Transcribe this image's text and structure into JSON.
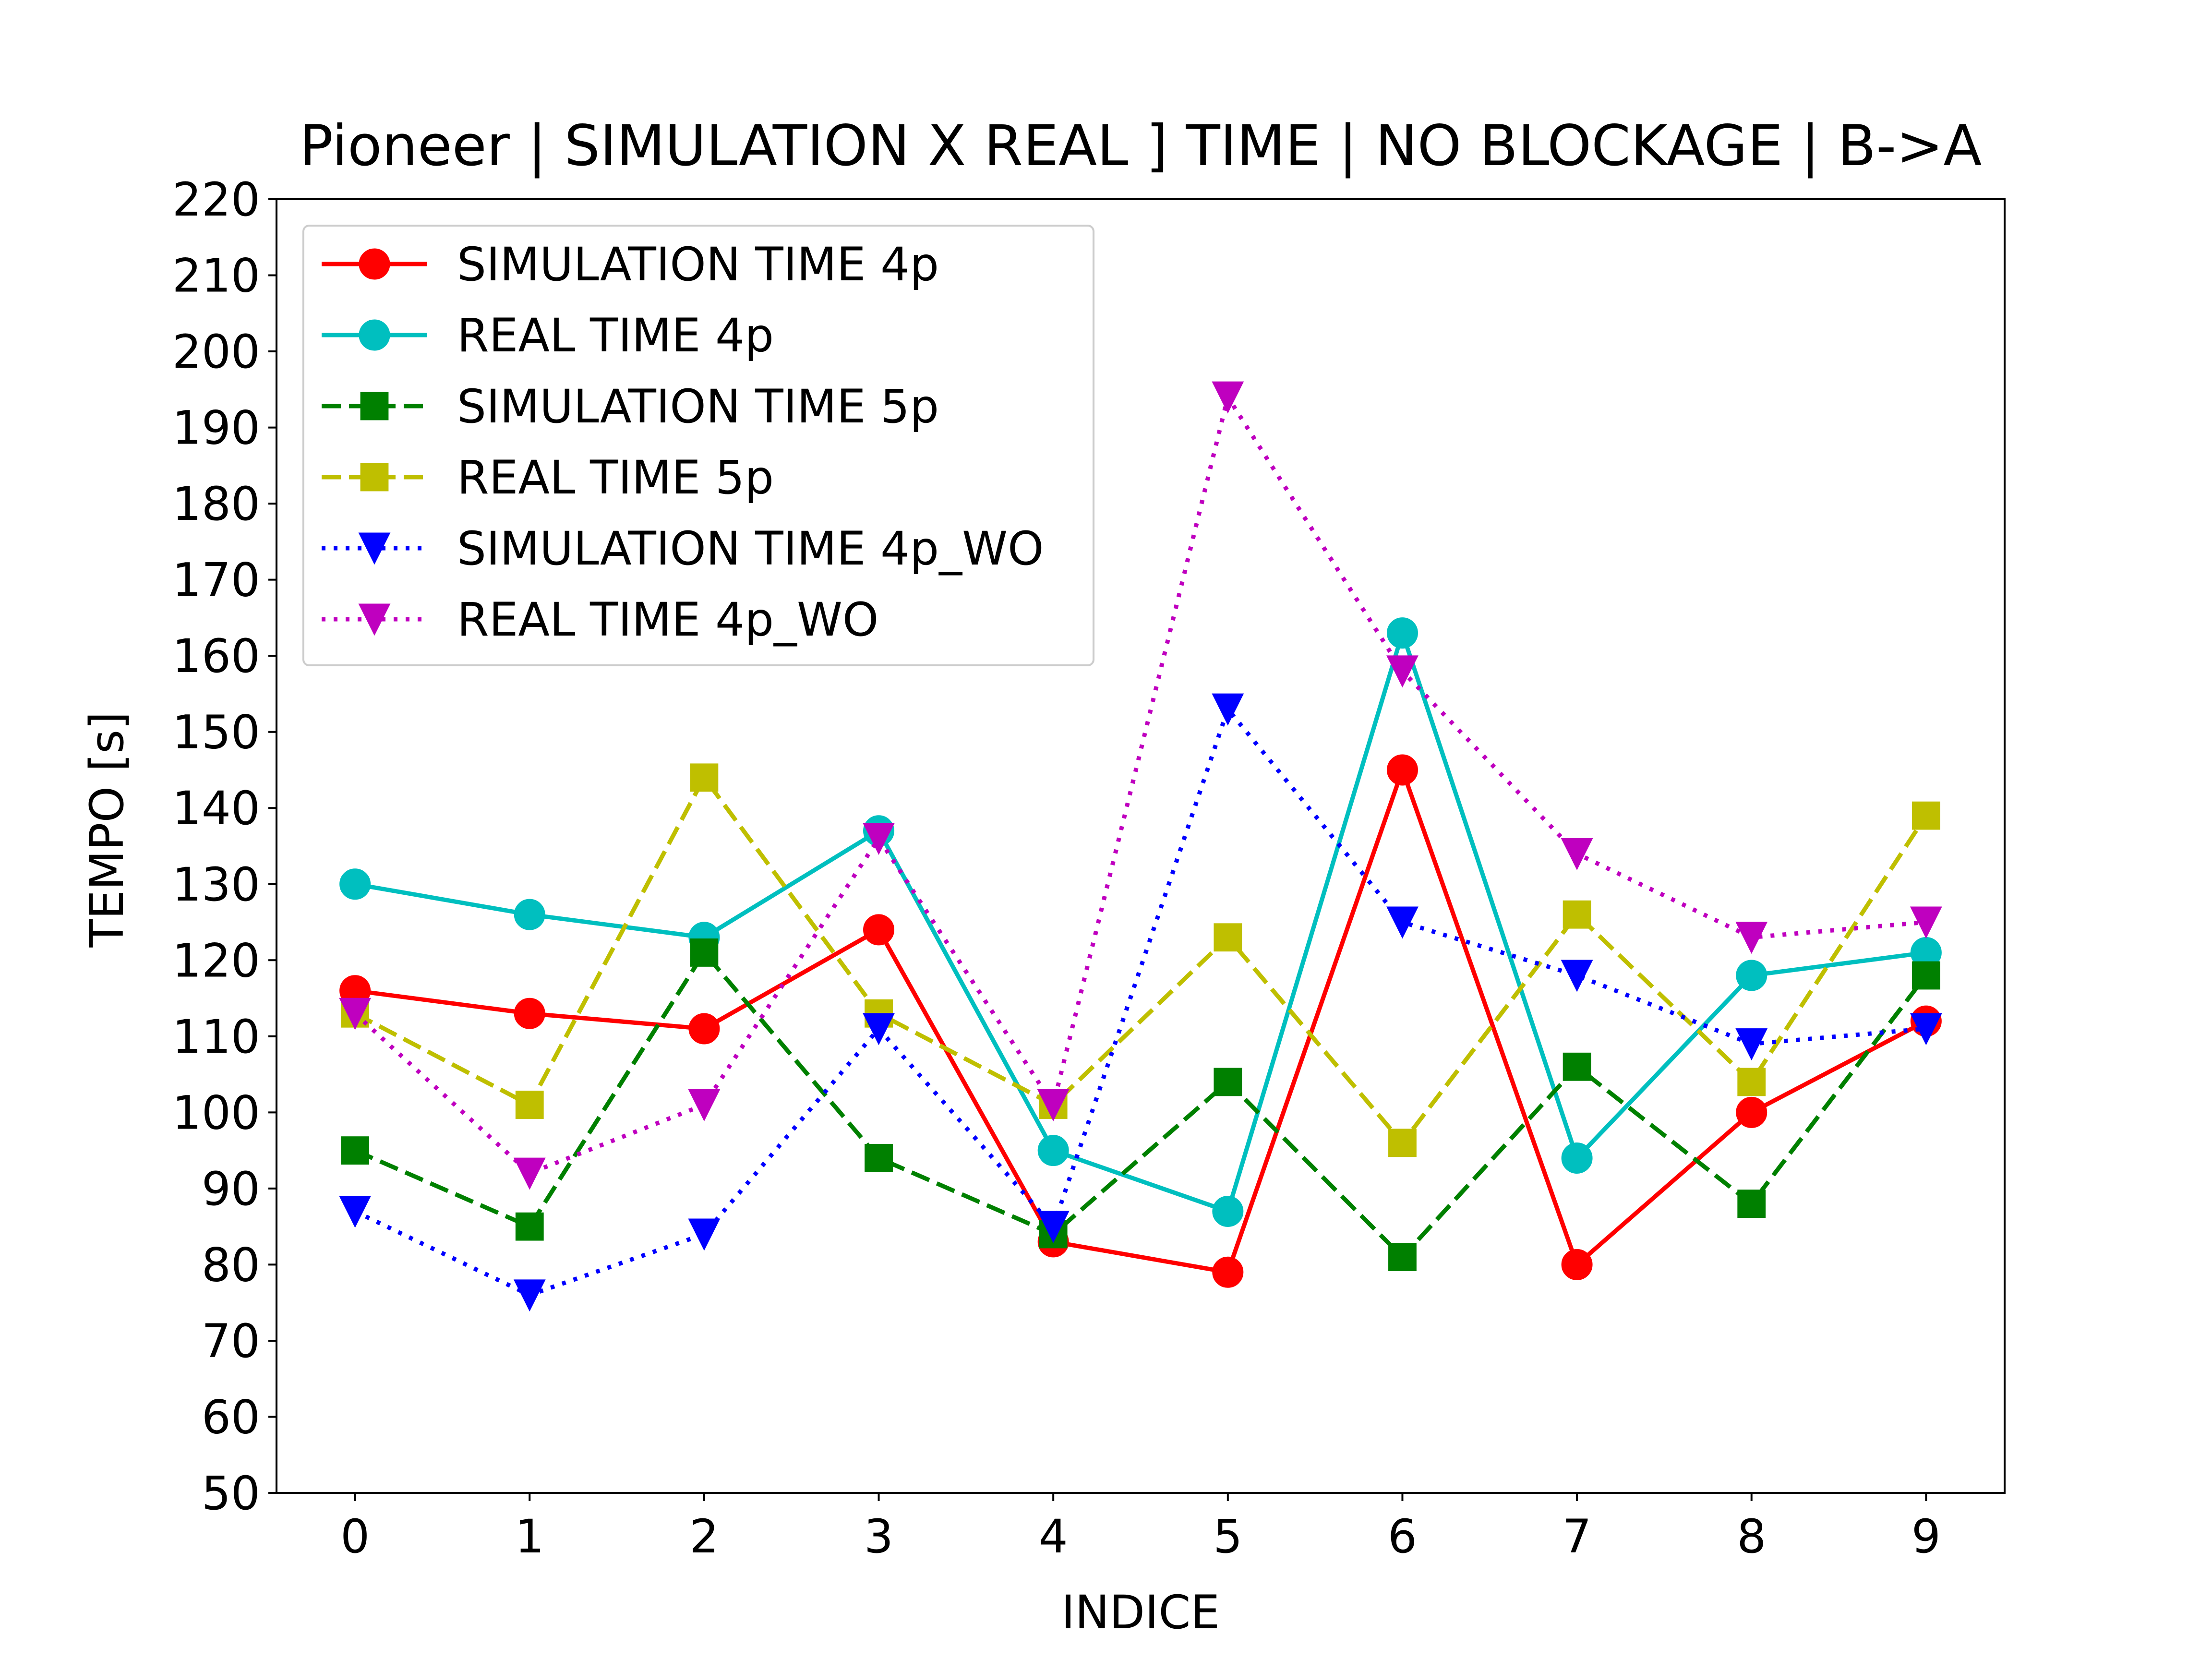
{
  "chart_data": {
    "type": "line",
    "title": "Pioneer |  SIMULATION X REAL ] TIME | NO BLOCKAGE | B->A",
    "xlabel": "INDICE",
    "ylabel": "TEMPO [s]",
    "x": [
      0,
      1,
      2,
      3,
      4,
      5,
      6,
      7,
      8,
      9
    ],
    "xlim": [
      -0.45,
      9.45
    ],
    "ylim": [
      50,
      220
    ],
    "xticks": [
      0,
      1,
      2,
      3,
      4,
      5,
      6,
      7,
      8,
      9
    ],
    "yticks": [
      50,
      60,
      70,
      80,
      90,
      100,
      110,
      120,
      130,
      140,
      150,
      160,
      170,
      180,
      190,
      200,
      210,
      220
    ],
    "grid": false,
    "legend_position": "upper-left",
    "series": [
      {
        "name": "SIMULATION TIME 4p",
        "color": "#ff0000",
        "line_style": "solid",
        "marker": "circle",
        "values": [
          116,
          113,
          111,
          124,
          83,
          79,
          145,
          80,
          100,
          112
        ]
      },
      {
        "name": "REAL TIME 4p",
        "color": "#00bfbf",
        "line_style": "solid",
        "marker": "circle",
        "values": [
          130,
          126,
          123,
          137,
          95,
          87,
          163,
          94,
          118,
          121
        ]
      },
      {
        "name": "SIMULATION TIME 5p",
        "color": "#008000",
        "line_style": "dashed",
        "marker": "square",
        "values": [
          95,
          85,
          121,
          94,
          84,
          104,
          81,
          106,
          88,
          118
        ]
      },
      {
        "name": "REAL TIME 5p",
        "color": "#bfbf00",
        "line_style": "dashed",
        "marker": "square",
        "values": [
          113,
          101,
          144,
          113,
          101,
          123,
          96,
          126,
          104,
          139
        ]
      },
      {
        "name": "SIMULATION TIME 4p_WO",
        "color": "#0000ff",
        "line_style": "dotted",
        "marker": "triangle-down",
        "values": [
          87,
          76,
          84,
          111,
          85,
          153,
          125,
          118,
          109,
          111
        ]
      },
      {
        "name": "REAL TIME 4p_WO",
        "color": "#bf00bf",
        "line_style": "dotted",
        "marker": "triangle-down",
        "values": [
          113,
          92,
          101,
          136,
          101,
          194,
          158,
          134,
          123,
          125
        ]
      }
    ]
  }
}
